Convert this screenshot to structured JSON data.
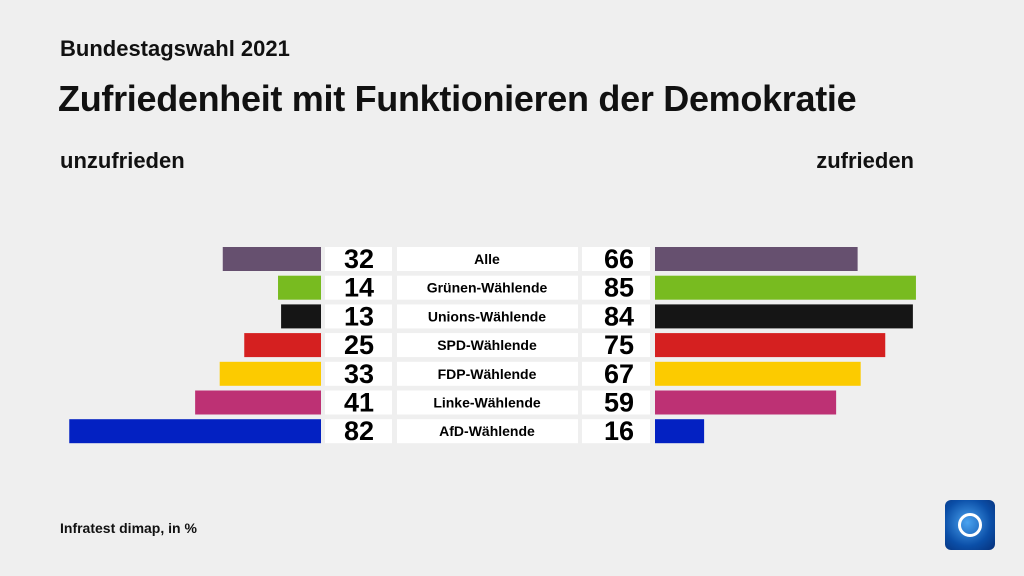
{
  "chart_data": {
    "type": "bar",
    "subtitle": "Bundestagswahl 2021",
    "title": "Zufriedenheit mit Funktionieren der Demokratie",
    "left_label": "unzufrieden",
    "right_label": "zufrieden",
    "categories": [
      "Alle",
      "Grünen-Wählende",
      "Unions-Wählende",
      "SPD-Wählende",
      "FDP-Wählende",
      "Linke-Wählende",
      "AfD-Wählende"
    ],
    "series": [
      {
        "name": "unzufrieden",
        "values": [
          32,
          14,
          13,
          25,
          33,
          41,
          82
        ]
      },
      {
        "name": "zufrieden",
        "values": [
          66,
          85,
          84,
          75,
          67,
          59,
          16
        ]
      }
    ],
    "colors": [
      "#66506f",
      "#78bb20",
      "#151515",
      "#d52020",
      "#fccb00",
      "#bd3174",
      "#0321c2"
    ],
    "source": "Infratest dimap, in %"
  }
}
